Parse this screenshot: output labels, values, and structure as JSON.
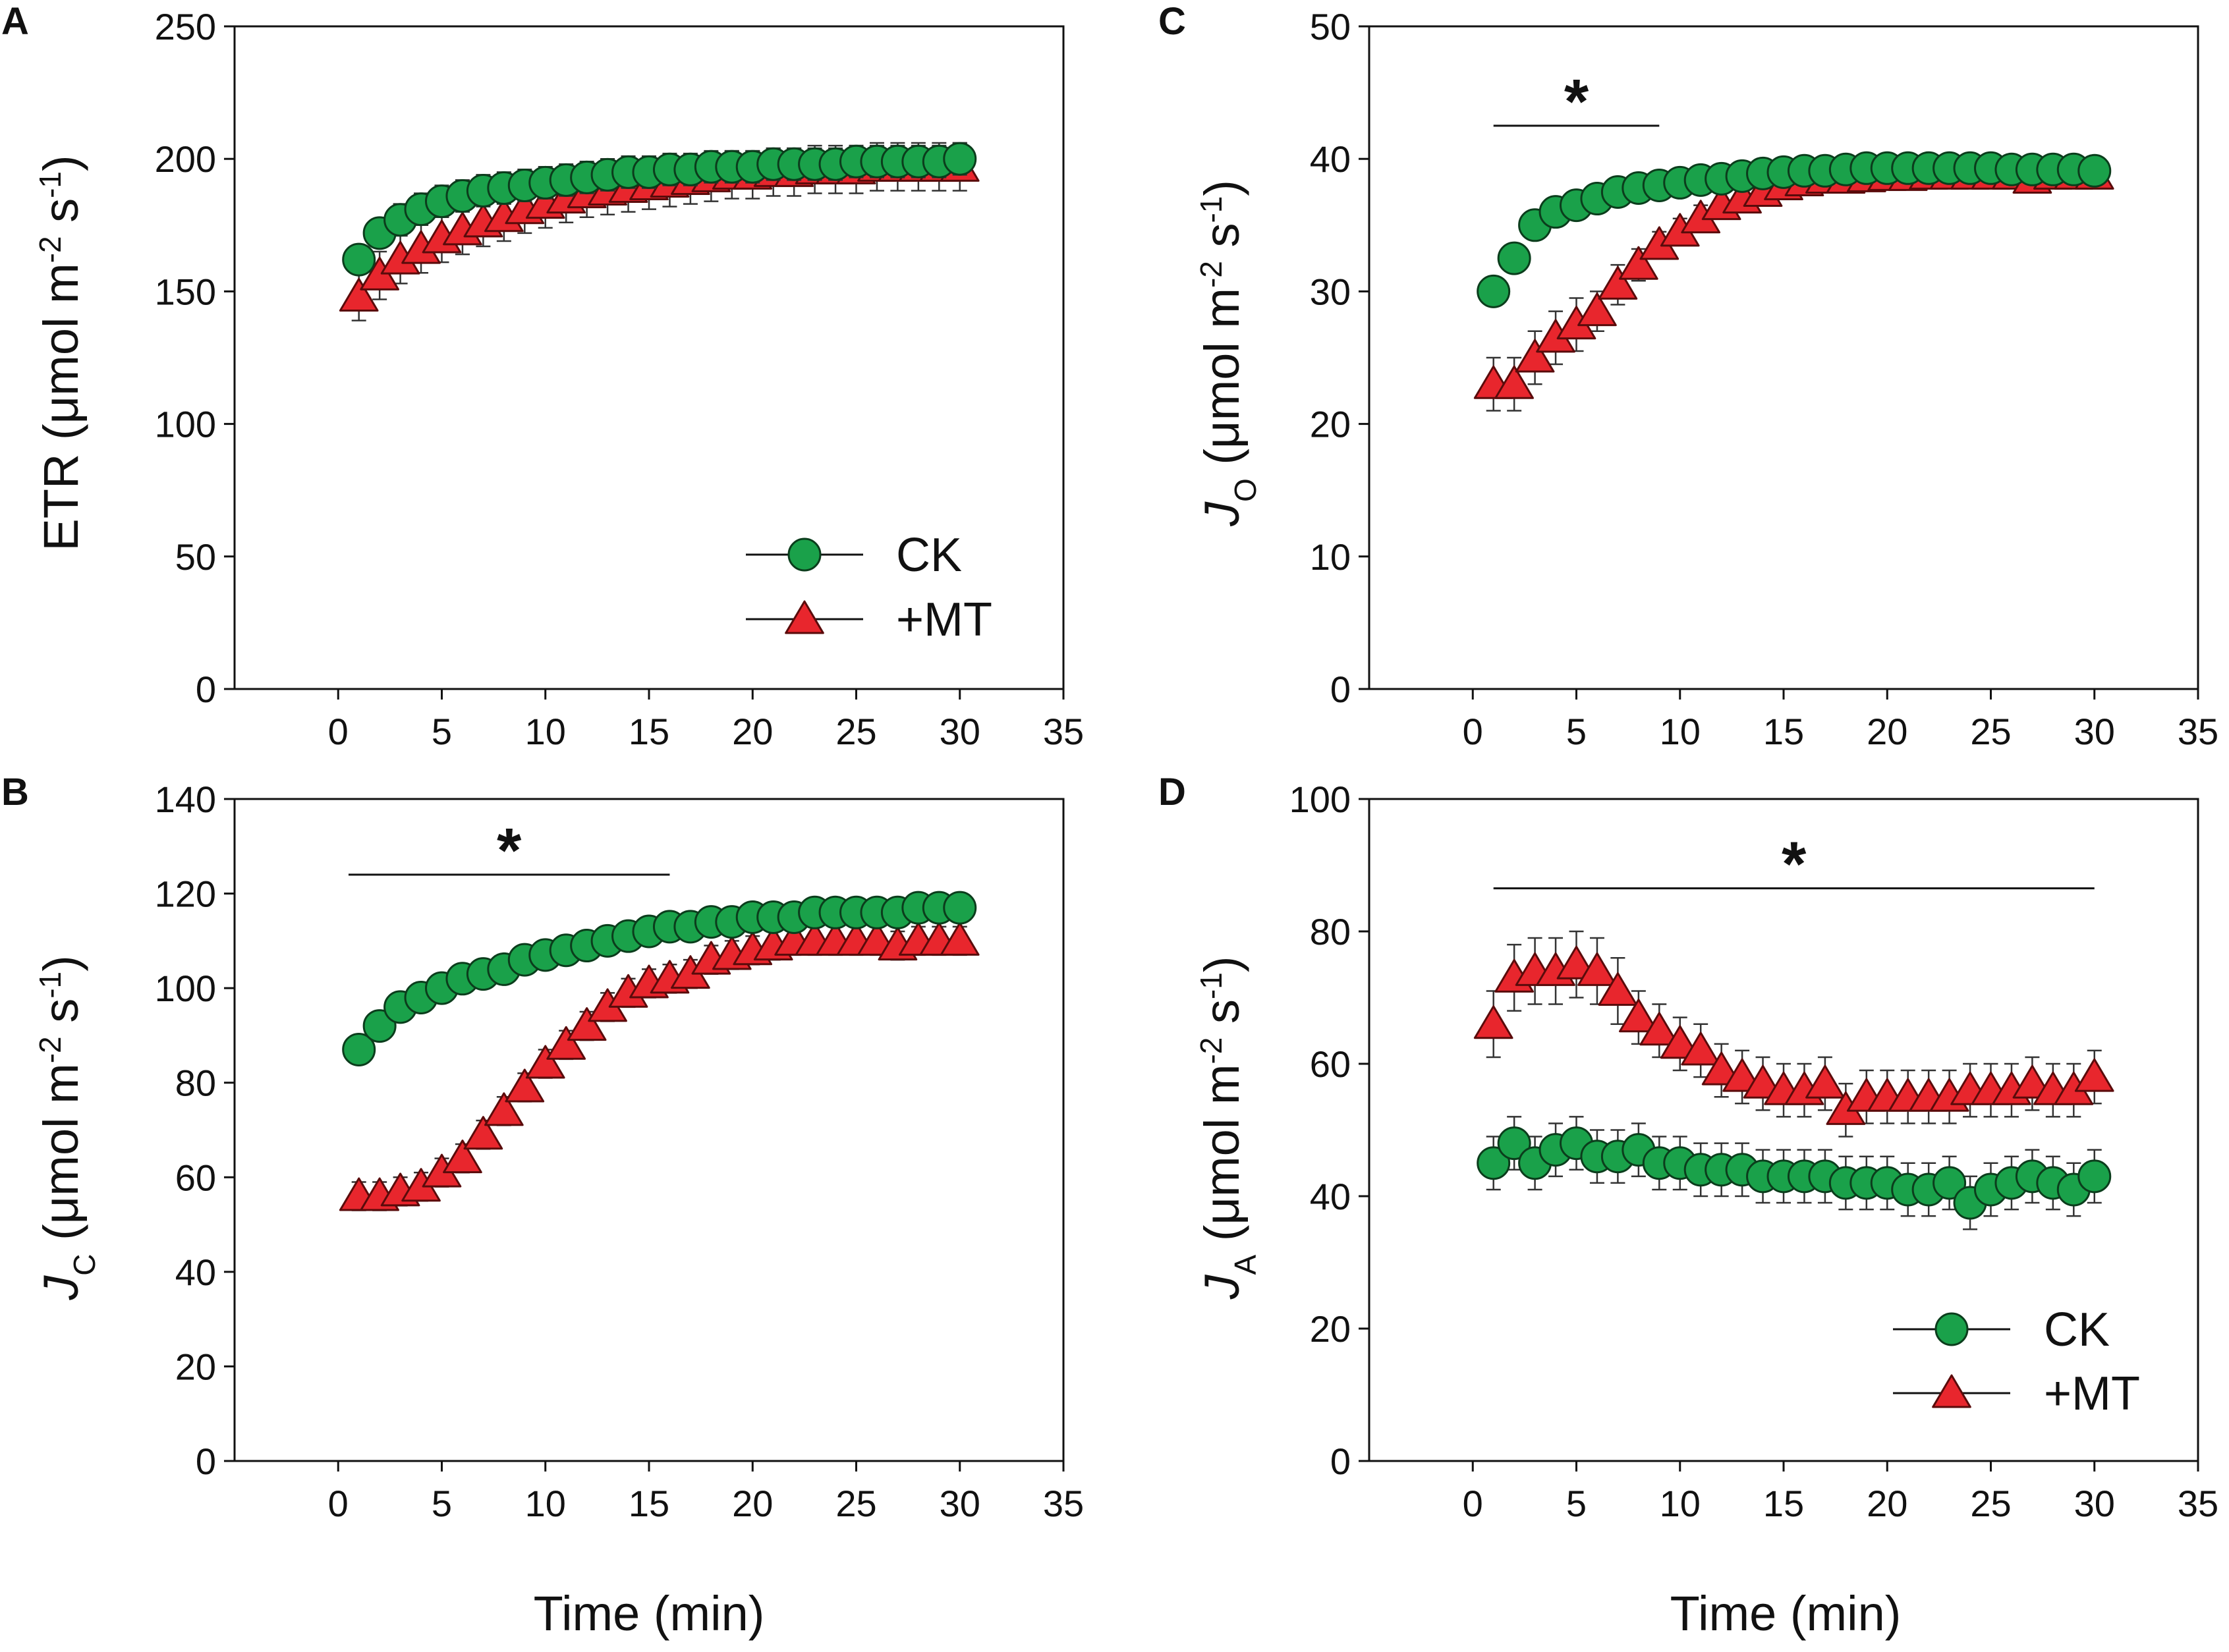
{
  "figure": {
    "x_axis_title": "Time (min)",
    "legend_labels": {
      "ck": "CK",
      "mt": "+MT"
    },
    "colors": {
      "ck": "#1aa14a",
      "mt": "#e8262d",
      "axis": "#111111",
      "error_bar": "#333333"
    },
    "marker_icons": {
      "ck": "green-circle-marker",
      "mt": "red-triangle-marker"
    }
  },
  "chart_data": [
    {
      "panel": "A",
      "type": "scatter",
      "ylabel_main": "ETR (μmol m",
      "ylabel_sup1": "-2",
      "ylabel_mid": " s",
      "ylabel_sup2": "-1",
      "ylabel_end": ")",
      "xlim": [
        -5,
        35
      ],
      "ylim": [
        0,
        250
      ],
      "xticks": [
        0,
        5,
        10,
        15,
        20,
        25,
        30,
        35
      ],
      "yticks": [
        0,
        50,
        100,
        150,
        200,
        250
      ],
      "legend": true,
      "significance": null,
      "series": [
        {
          "name": "CK",
          "x": [
            1,
            2,
            3,
            4,
            5,
            6,
            7,
            8,
            9,
            10,
            11,
            12,
            13,
            14,
            15,
            16,
            17,
            18,
            19,
            20,
            21,
            22,
            23,
            24,
            25,
            26,
            27,
            28,
            29,
            30
          ],
          "values": [
            162,
            172,
            177,
            181,
            184,
            186,
            188,
            189,
            190,
            191,
            192,
            193,
            194,
            195,
            195,
            196,
            196,
            197,
            197,
            197,
            198,
            198,
            198,
            198,
            199,
            199,
            199,
            199,
            199,
            200
          ],
          "errors": [
            3,
            5,
            6,
            6,
            6,
            6,
            6,
            6,
            6,
            6,
            6,
            6,
            6,
            6,
            6,
            6,
            6,
            6,
            6,
            6,
            6,
            6,
            6,
            6,
            6,
            6,
            6,
            6,
            6,
            6
          ]
        },
        {
          "name": "+MT",
          "x": [
            1,
            2,
            3,
            4,
            5,
            6,
            7,
            8,
            9,
            10,
            11,
            12,
            13,
            14,
            15,
            16,
            17,
            18,
            19,
            20,
            21,
            22,
            23,
            24,
            25,
            26,
            27,
            28,
            29,
            30
          ],
          "values": [
            148,
            156,
            162,
            166,
            170,
            173,
            176,
            178,
            181,
            183,
            185,
            187,
            188,
            189,
            190,
            191,
            192,
            193,
            194,
            194,
            195,
            195,
            196,
            196,
            196,
            197,
            197,
            197,
            197,
            197
          ],
          "errors": [
            9,
            9,
            9,
            9,
            9,
            9,
            9,
            9,
            9,
            9,
            9,
            9,
            9,
            9,
            9,
            9,
            9,
            9,
            9,
            9,
            9,
            9,
            9,
            9,
            9,
            9,
            9,
            9,
            9,
            9
          ]
        }
      ]
    },
    {
      "panel": "B",
      "type": "scatter",
      "ylabel_main": "J",
      "ylabel_sub": "C",
      "ylabel_mid": " (μmol  m",
      "ylabel_sup1": "-2",
      "ylabel_mid2": " s",
      "ylabel_sup2": "-1",
      "ylabel_end": ")",
      "xlim": [
        -5,
        35
      ],
      "ylim": [
        0,
        140
      ],
      "xticks": [
        0,
        5,
        10,
        15,
        20,
        25,
        30,
        35
      ],
      "yticks": [
        0,
        20,
        40,
        60,
        80,
        100,
        120,
        140
      ],
      "legend": false,
      "significance": {
        "label": "*",
        "x_start": 0.5,
        "x_end": 16,
        "y": 124
      },
      "series": [
        {
          "name": "CK",
          "x": [
            1,
            2,
            3,
            4,
            5,
            6,
            7,
            8,
            9,
            10,
            11,
            12,
            13,
            14,
            15,
            16,
            17,
            18,
            19,
            20,
            21,
            22,
            23,
            24,
            25,
            26,
            27,
            28,
            29,
            30
          ],
          "values": [
            87,
            92,
            96,
            98,
            100,
            102,
            103,
            104,
            106,
            107,
            108,
            109,
            110,
            111,
            112,
            113,
            113,
            114,
            114,
            115,
            115,
            115,
            116,
            116,
            116,
            116,
            116,
            117,
            117,
            117
          ],
          "errors": [
            2,
            2,
            3,
            3,
            3,
            2,
            2,
            2,
            2,
            2,
            2,
            2,
            2,
            2,
            2,
            2,
            2,
            2,
            2,
            2,
            2,
            2,
            2,
            2,
            2,
            2,
            2,
            2,
            2,
            2
          ]
        },
        {
          "name": "+MT",
          "x": [
            1,
            2,
            3,
            4,
            5,
            6,
            7,
            8,
            9,
            10,
            11,
            12,
            13,
            14,
            15,
            16,
            17,
            18,
            19,
            20,
            21,
            22,
            23,
            24,
            25,
            26,
            27,
            28,
            29,
            30
          ],
          "values": [
            56,
            56,
            57,
            58,
            61,
            64,
            69,
            74,
            79,
            84,
            88,
            92,
            96,
            99,
            101,
            102,
            103,
            106,
            107,
            108,
            109,
            110,
            110,
            110,
            110,
            110,
            109,
            110,
            110,
            110
          ],
          "errors": [
            3,
            3,
            3,
            3,
            3,
            3,
            3,
            3,
            3,
            3,
            3,
            3,
            3,
            3,
            3,
            3,
            3,
            3,
            3,
            3,
            3,
            3,
            3,
            3,
            3,
            3,
            3,
            3,
            3,
            3
          ]
        }
      ]
    },
    {
      "panel": "C",
      "type": "scatter",
      "ylabel_main": "J",
      "ylabel_sub": "O",
      "ylabel_mid": " (μmol  m",
      "ylabel_sup1": "-2",
      "ylabel_mid2": " s",
      "ylabel_sup2": "-1",
      "ylabel_end": ")",
      "xlim": [
        -5,
        35
      ],
      "ylim": [
        0,
        50
      ],
      "xticks": [
        0,
        5,
        10,
        15,
        20,
        25,
        30,
        35
      ],
      "yticks": [
        0,
        10,
        20,
        30,
        40,
        50
      ],
      "legend": false,
      "significance": {
        "label": "*",
        "x_start": 1,
        "x_end": 9,
        "y": 42.5
      },
      "series": [
        {
          "name": "CK",
          "x": [
            1,
            2,
            3,
            4,
            5,
            6,
            7,
            8,
            9,
            10,
            11,
            12,
            13,
            14,
            15,
            16,
            17,
            18,
            19,
            20,
            21,
            22,
            23,
            24,
            25,
            26,
            27,
            28,
            29,
            30
          ],
          "values": [
            30,
            32.5,
            35,
            36,
            36.5,
            37,
            37.5,
            37.8,
            38,
            38.2,
            38.4,
            38.5,
            38.7,
            38.9,
            39,
            39.1,
            39.1,
            39.2,
            39.3,
            39.3,
            39.3,
            39.3,
            39.3,
            39.3,
            39.3,
            39.2,
            39.2,
            39.2,
            39.2,
            39.1
          ],
          "errors": [
            0.8,
            0.8,
            0.8,
            0.8,
            0.8,
            0.8,
            0.8,
            0.8,
            0.8,
            0.8,
            0.8,
            0.8,
            0.8,
            0.8,
            0.8,
            0.8,
            0.8,
            0.8,
            0.8,
            0.8,
            0.8,
            0.8,
            0.8,
            0.8,
            0.8,
            0.8,
            0.8,
            0.8,
            0.8,
            0.8
          ]
        },
        {
          "name": "+MT",
          "x": [
            1,
            2,
            3,
            4,
            5,
            6,
            7,
            8,
            9,
            10,
            11,
            12,
            13,
            14,
            15,
            16,
            17,
            18,
            19,
            20,
            21,
            22,
            23,
            24,
            25,
            26,
            27,
            28,
            29,
            30
          ],
          "values": [
            23,
            23,
            25,
            26.5,
            27.5,
            28.5,
            30.5,
            32,
            33.5,
            34.5,
            35.5,
            36.5,
            37,
            37.5,
            38,
            38.3,
            38.5,
            38.5,
            38.6,
            38.7,
            38.7,
            38.8,
            38.8,
            38.8,
            38.8,
            38.8,
            38.5,
            38.8,
            38.8,
            38.8
          ],
          "errors": [
            2,
            2,
            2,
            2,
            2,
            1.5,
            1.5,
            1.2,
            1,
            1,
            1,
            1,
            1,
            1,
            1,
            1,
            1,
            1,
            1,
            1,
            1,
            1,
            1,
            1,
            1,
            1,
            1,
            1,
            1,
            1
          ]
        }
      ]
    },
    {
      "panel": "D",
      "type": "scatter",
      "ylabel_main": "J",
      "ylabel_sub": "A",
      "ylabel_mid": " (μmol  m",
      "ylabel_sup1": "-2",
      "ylabel_mid2": " s",
      "ylabel_sup2": "-1",
      "ylabel_end": ")",
      "xlim": [
        -5,
        35
      ],
      "ylim": [
        0,
        100
      ],
      "xticks": [
        0,
        5,
        10,
        15,
        20,
        25,
        30,
        35
      ],
      "yticks": [
        0,
        20,
        40,
        60,
        80,
        100
      ],
      "legend": true,
      "significance": {
        "label": "*",
        "x_start": 1,
        "x_end": 30,
        "y": 86.5
      },
      "series": [
        {
          "name": "CK",
          "x": [
            1,
            2,
            3,
            4,
            5,
            6,
            7,
            8,
            9,
            10,
            11,
            12,
            13,
            14,
            15,
            16,
            17,
            18,
            19,
            20,
            21,
            22,
            23,
            24,
            25,
            26,
            27,
            28,
            29,
            30
          ],
          "values": [
            45,
            48,
            45,
            47,
            48,
            46,
            46,
            47,
            45,
            45,
            44,
            44,
            44,
            43,
            43,
            43,
            43,
            42,
            42,
            42,
            41,
            41,
            42,
            39,
            41,
            42,
            43,
            42,
            41,
            43
          ],
          "errors": [
            4,
            4,
            4,
            4,
            4,
            4,
            4,
            4,
            4,
            4,
            4,
            4,
            4,
            4,
            4,
            4,
            4,
            4,
            4,
            4,
            4,
            4,
            4,
            4,
            4,
            4,
            4,
            4,
            4,
            4
          ]
        },
        {
          "name": "+MT",
          "x": [
            1,
            2,
            3,
            4,
            5,
            6,
            7,
            8,
            9,
            10,
            11,
            12,
            13,
            14,
            15,
            16,
            17,
            18,
            19,
            20,
            21,
            22,
            23,
            24,
            25,
            26,
            27,
            28,
            29,
            30
          ],
          "values": [
            66,
            73,
            74,
            74,
            75,
            74,
            71,
            67,
            65,
            63,
            62,
            59,
            58,
            57,
            56,
            56,
            57,
            53,
            55,
            55,
            55,
            55,
            55,
            56,
            56,
            56,
            57,
            56,
            56,
            58
          ],
          "errors": [
            5,
            5,
            5,
            5,
            5,
            5,
            5,
            4,
            4,
            4,
            4,
            4,
            4,
            4,
            4,
            4,
            4,
            4,
            4,
            4,
            4,
            4,
            4,
            4,
            4,
            4,
            4,
            4,
            4,
            4
          ]
        }
      ]
    }
  ]
}
